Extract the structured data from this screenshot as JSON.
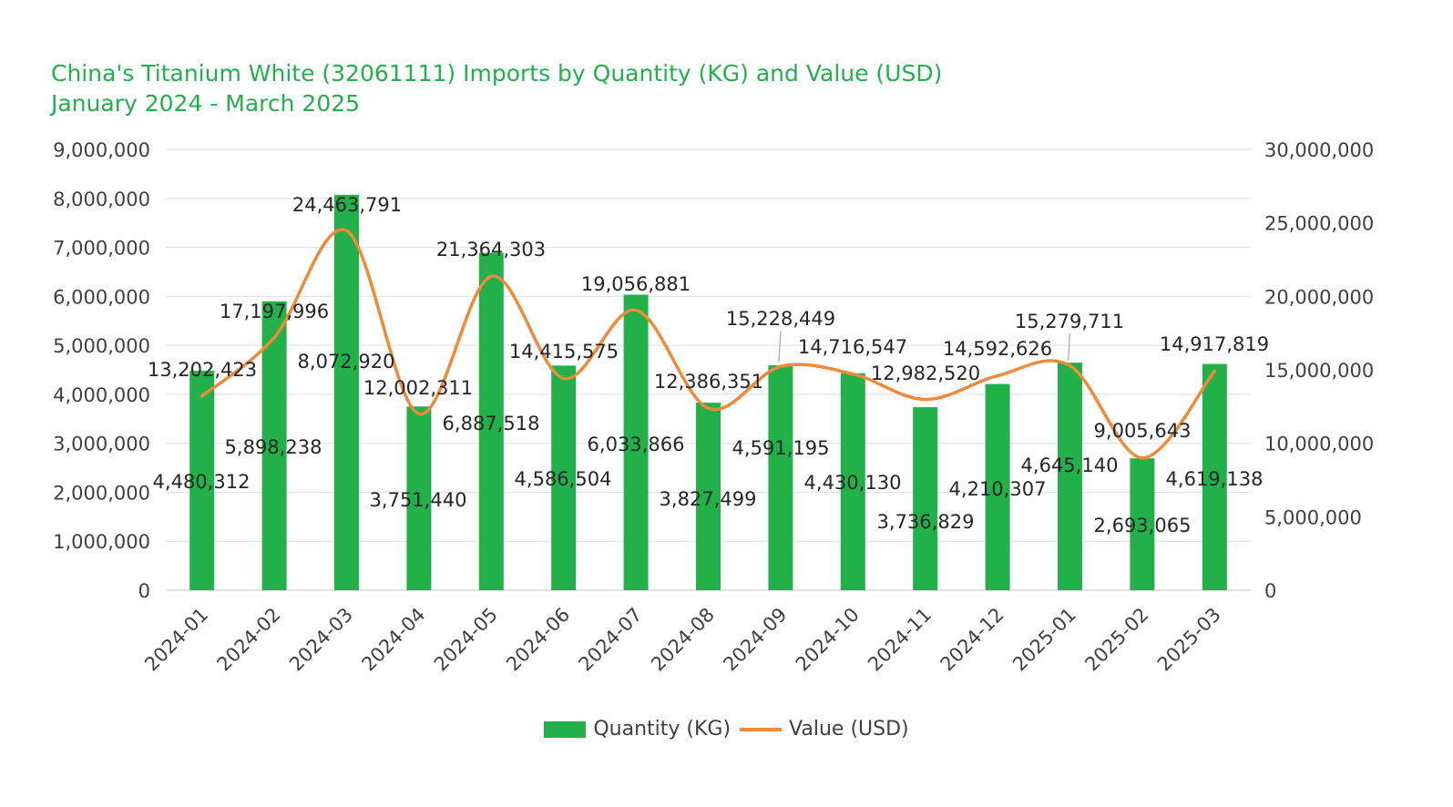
{
  "chart_data": {
    "type": "bar+line",
    "title": "China's Titanium White (32061111) Imports by Quantity (KG) and Value (USD)",
    "subtitle": "January 2024 - March 2025",
    "categories": [
      "2024-01",
      "2024-02",
      "2024-03",
      "2024-04",
      "2024-05",
      "2024-06",
      "2024-07",
      "2024-08",
      "2024-09",
      "2024-10",
      "2024-11",
      "2024-12",
      "2025-01",
      "2025-02",
      "2025-03"
    ],
    "series": [
      {
        "name": "Quantity (KG)",
        "type": "bar",
        "axis": "left",
        "color": "#21b04a",
        "values": [
          4480312,
          5898238,
          8072920,
          3751440,
          6887518,
          4586504,
          6033866,
          3827499,
          4591195,
          4430130,
          3736829,
          4210307,
          4645140,
          2693065,
          4619138
        ],
        "labels": [
          "4,480,312",
          "5,898,238",
          "8,072,920",
          "3,751,440",
          "6,887,518",
          "4,586,504",
          "6,033,866",
          "3,827,499",
          "4,591,195",
          "4,430,130",
          "3,736,829",
          "4,210,307",
          "4,645,140",
          "2,693,065",
          "4,619,138"
        ]
      },
      {
        "name": "Value (USD)",
        "type": "line",
        "axis": "right",
        "color": "#ee8a3a",
        "values": [
          13202423,
          17197996,
          24463791,
          12002311,
          21364303,
          14415575,
          19056881,
          12386351,
          15228449,
          14716547,
          12982520,
          14592626,
          15279711,
          9005643,
          14917819
        ],
        "labels": [
          "13,202,423",
          "17,197,996",
          "24,463,791",
          "12,002,311",
          "21,364,303",
          "14,415,575",
          "19,056,881",
          "12,386,351",
          "15,228,449",
          "14,716,547",
          "12,982,520",
          "14,592,626",
          "15,279,711",
          "9,005,643",
          "14,917,819"
        ]
      }
    ],
    "y_left": {
      "min": 0,
      "max": 9000000,
      "step": 1000000,
      "tick_labels": [
        "0",
        "1,000,000",
        "2,000,000",
        "3,000,000",
        "4,000,000",
        "5,000,000",
        "6,000,000",
        "7,000,000",
        "8,000,000",
        "9,000,000"
      ]
    },
    "y_right": {
      "min": 0,
      "max": 30000000,
      "step": 5000000,
      "tick_labels": [
        "0",
        "5,000,000",
        "10,000,000",
        "15,000,000",
        "20,000,000",
        "25,000,000",
        "30,000,000"
      ]
    },
    "grid": true,
    "legend": {
      "position": "bottom",
      "entries": [
        "Quantity (KG)",
        "Value (USD)"
      ]
    }
  }
}
